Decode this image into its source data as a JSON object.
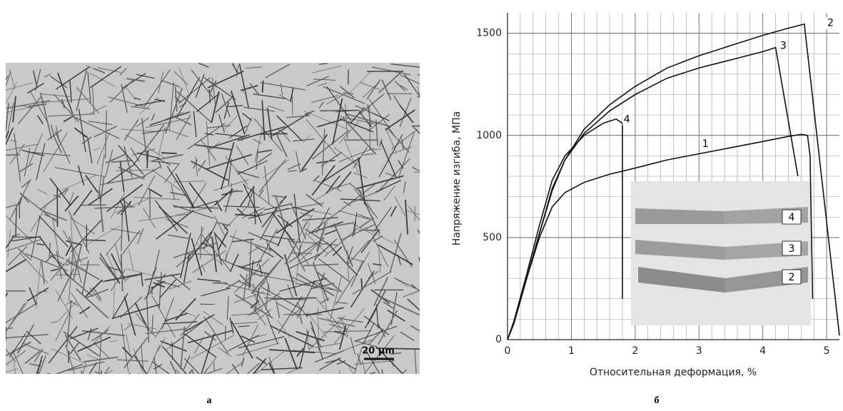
{
  "chart_data": {
    "type": "line",
    "y_label": "Напряжение изгиба, МПа",
    "x_label": "Относительная деформация, %",
    "xlim": [
      0,
      5.2
    ],
    "ylim": [
      0,
      1600
    ],
    "xticks": [
      0,
      1,
      2,
      3,
      4,
      5
    ],
    "yticks": [
      0,
      500,
      1000,
      1500
    ],
    "grid": true,
    "minor_grid": 5,
    "series": [
      {
        "name": "1",
        "color": "#111",
        "x": [
          0,
          0.1,
          0.3,
          0.5,
          0.7,
          0.9,
          1.2,
          1.6,
          2,
          2.5,
          3,
          3.5,
          4,
          4.4,
          4.6,
          4.7,
          4.74,
          4.78
        ],
        "values": [
          0,
          80,
          300,
          500,
          650,
          720,
          770,
          810,
          840,
          880,
          910,
          940,
          970,
          995,
          1005,
          1000,
          900,
          200
        ]
      },
      {
        "name": "2",
        "color": "#111",
        "x": [
          0,
          0.1,
          0.3,
          0.5,
          0.7,
          0.9,
          1.2,
          1.6,
          2,
          2.5,
          3,
          3.5,
          4,
          4.4,
          4.65,
          5.2
        ],
        "values": [
          0,
          80,
          300,
          520,
          730,
          880,
          1030,
          1150,
          1240,
          1330,
          1390,
          1440,
          1490,
          1525,
          1545,
          20
        ]
      },
      {
        "name": "3",
        "color": "#111",
        "x": [
          0,
          0.1,
          0.3,
          0.5,
          0.7,
          0.9,
          1.2,
          1.6,
          2,
          2.5,
          3,
          3.5,
          4,
          4.2,
          4.55
        ],
        "values": [
          0,
          80,
          300,
          520,
          740,
          880,
          1010,
          1120,
          1200,
          1280,
          1330,
          1370,
          1410,
          1430,
          800
        ]
      },
      {
        "name": "4",
        "color": "#111",
        "x": [
          0,
          0.1,
          0.3,
          0.5,
          0.7,
          0.9,
          1.2,
          1.5,
          1.7,
          1.8,
          1.8
        ],
        "values": [
          0,
          90,
          320,
          560,
          780,
          900,
          1000,
          1060,
          1080,
          1060,
          200
        ]
      }
    ]
  },
  "inset": {
    "labels": [
      "4",
      "3",
      "2"
    ]
  },
  "micrograph": {
    "scale_bar": "20 µm"
  },
  "panel_labels": [
    "а",
    "б"
  ]
}
